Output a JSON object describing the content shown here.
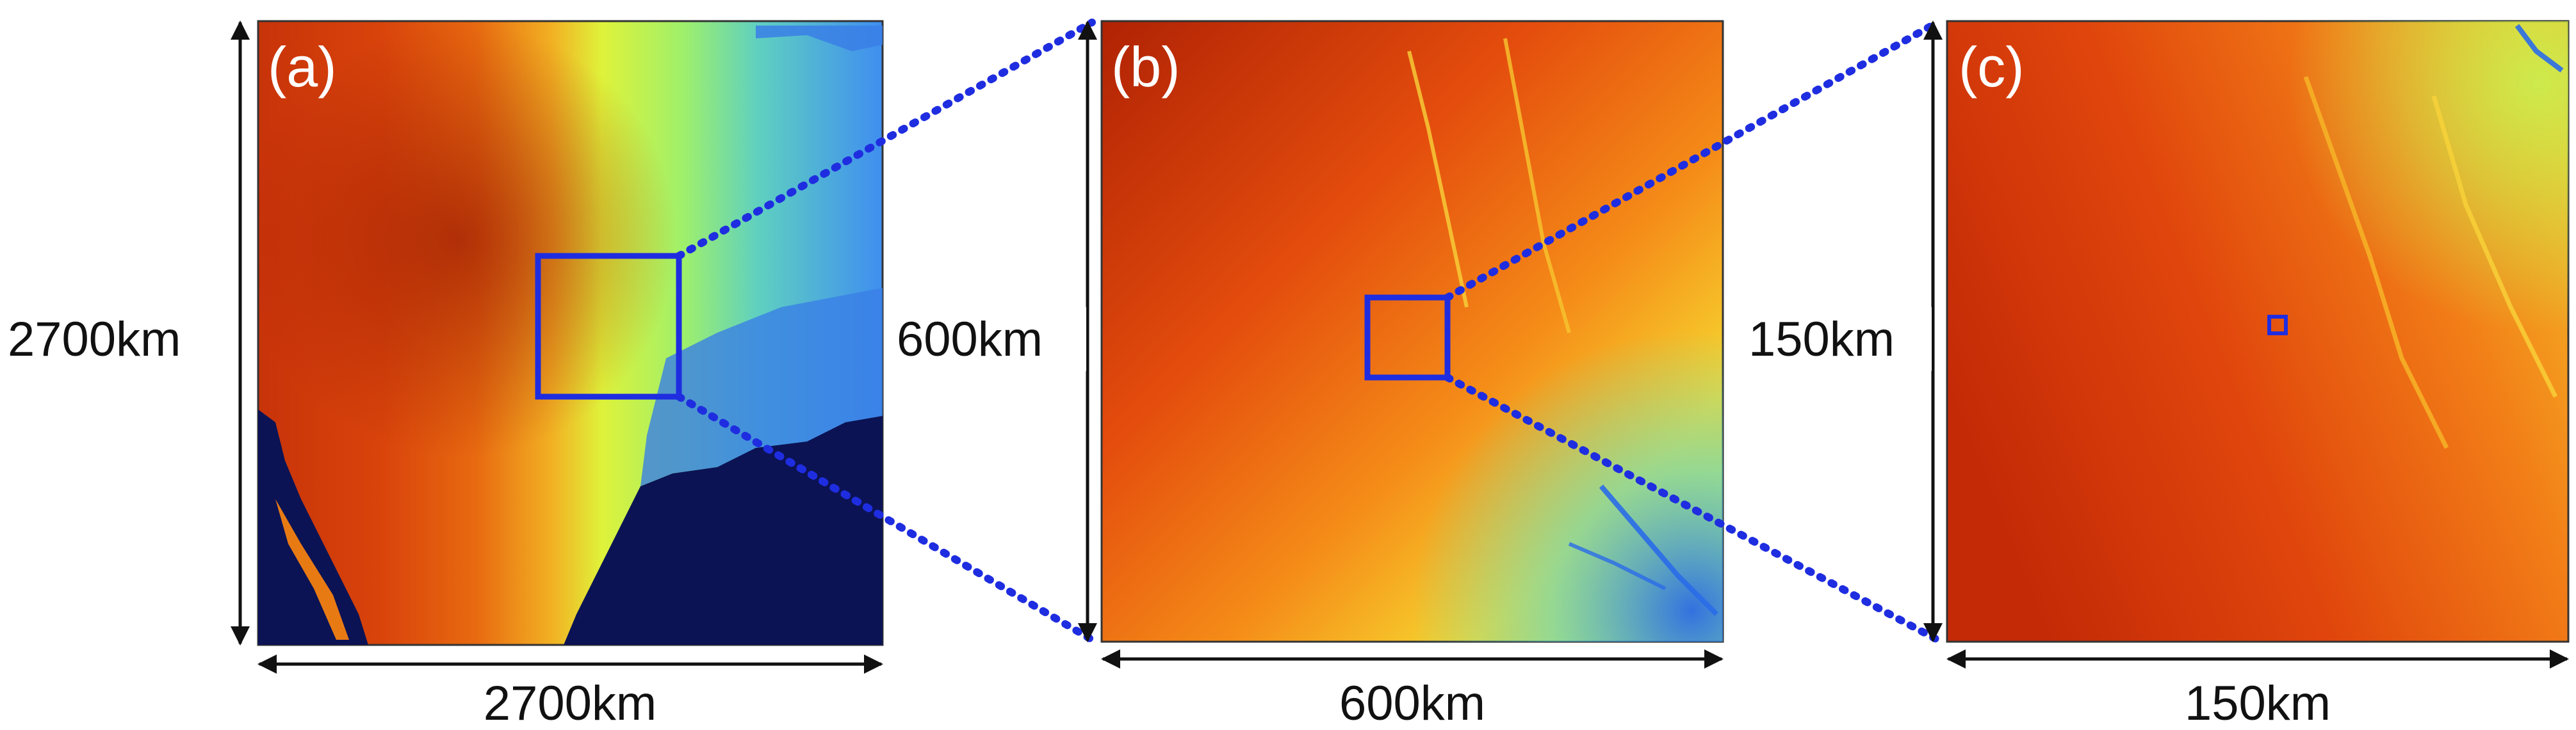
{
  "panels": [
    {
      "label": "(a)",
      "width_label": "2700km",
      "height_label": "2700km"
    },
    {
      "label": "(b)",
      "width_label": "600km",
      "height_label": "600km"
    },
    {
      "label": "(c)",
      "width_label": "150km",
      "height_label": "150km"
    }
  ],
  "colors": {
    "zoom_box": "#1f2de0",
    "connector": "#1f2de0",
    "ocean": "#0b1354",
    "elevation_low": "#2f72e8",
    "elevation_mid": "#e9f53a",
    "elevation_high": "#c22a06"
  }
}
